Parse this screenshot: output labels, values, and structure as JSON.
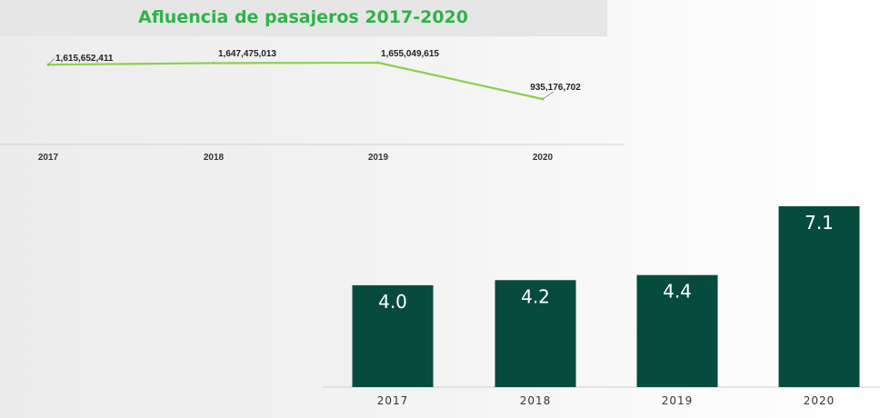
{
  "title": "Afluencia de pasajeros 2017-2020",
  "colors": {
    "title": "#2fb34a",
    "line": "#8dcf4f",
    "bar": "#064b3e",
    "axis_text": "#333333",
    "baseline": "#cfcfcf"
  },
  "chart_data": [
    {
      "type": "line",
      "title": "Afluencia de pasajeros 2017-2020",
      "xlabel": "",
      "ylabel": "",
      "grid": false,
      "legend": "none",
      "categories": [
        "2017",
        "2018",
        "2019",
        "2020"
      ],
      "values": [
        1615652411,
        1647475013,
        1655049615,
        935176702
      ],
      "data_labels": [
        "1,615,652,411",
        "1,647,475,013",
        "1,655,049,615",
        "935,176,702"
      ]
    },
    {
      "type": "bar",
      "title": "",
      "xlabel": "",
      "ylabel": "",
      "grid": false,
      "legend": "none",
      "categories": [
        "2017",
        "2018",
        "2019",
        "2020"
      ],
      "values": [
        4.0,
        4.2,
        4.4,
        7.1
      ],
      "data_labels": [
        "4.0",
        "4.2",
        "4.4",
        "7.1"
      ],
      "ylim": [
        0,
        7.1
      ]
    }
  ]
}
